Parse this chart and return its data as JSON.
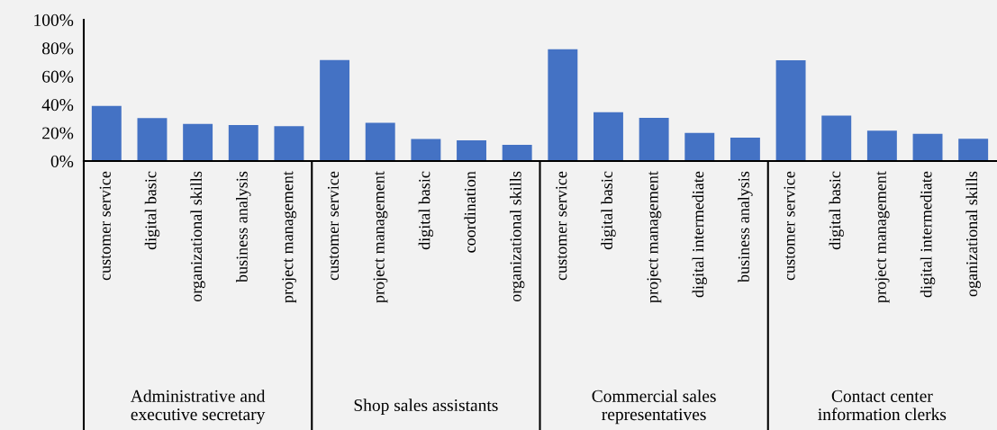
{
  "chart_data": {
    "type": "bar",
    "categories": [
      "customer service",
      "digital basic",
      "organizational skills",
      "business analysis",
      "project management",
      "customer service",
      "project management",
      "digital basic",
      "coordination",
      "organizational skills",
      "customer service",
      "digital basic",
      "project management",
      "digital intermediate",
      "business analysis",
      "customer service",
      "digital basic",
      "project management",
      "digital intermediate",
      "oganizational skills"
    ],
    "values": [
      39,
      30.4,
      26.3,
      25.4,
      24.7,
      71.5,
      27,
      15.6,
      14.7,
      11.4,
      79.2,
      34.6,
      30.6,
      19.9,
      16.6,
      71.3,
      32.2,
      21.5,
      19.2,
      15.7
    ],
    "color": "#4472c4",
    "ylim": [
      0,
      100
    ],
    "yticks": [
      {
        "value": 0,
        "label": "0%"
      },
      {
        "value": 20,
        "label": "20%"
      },
      {
        "value": 40,
        "label": "40%"
      },
      {
        "value": 60,
        "label": "60%"
      },
      {
        "value": 80,
        "label": "80%"
      },
      {
        "value": 100,
        "label": "100%"
      }
    ],
    "annotations": [
      "Administrative and\nexecutive secretary",
      "Shop sales assistants",
      "Commercial sales\nrepresentatives",
      "Contact center\ninformation clerks"
    ],
    "grid": false,
    "legend": false
  }
}
